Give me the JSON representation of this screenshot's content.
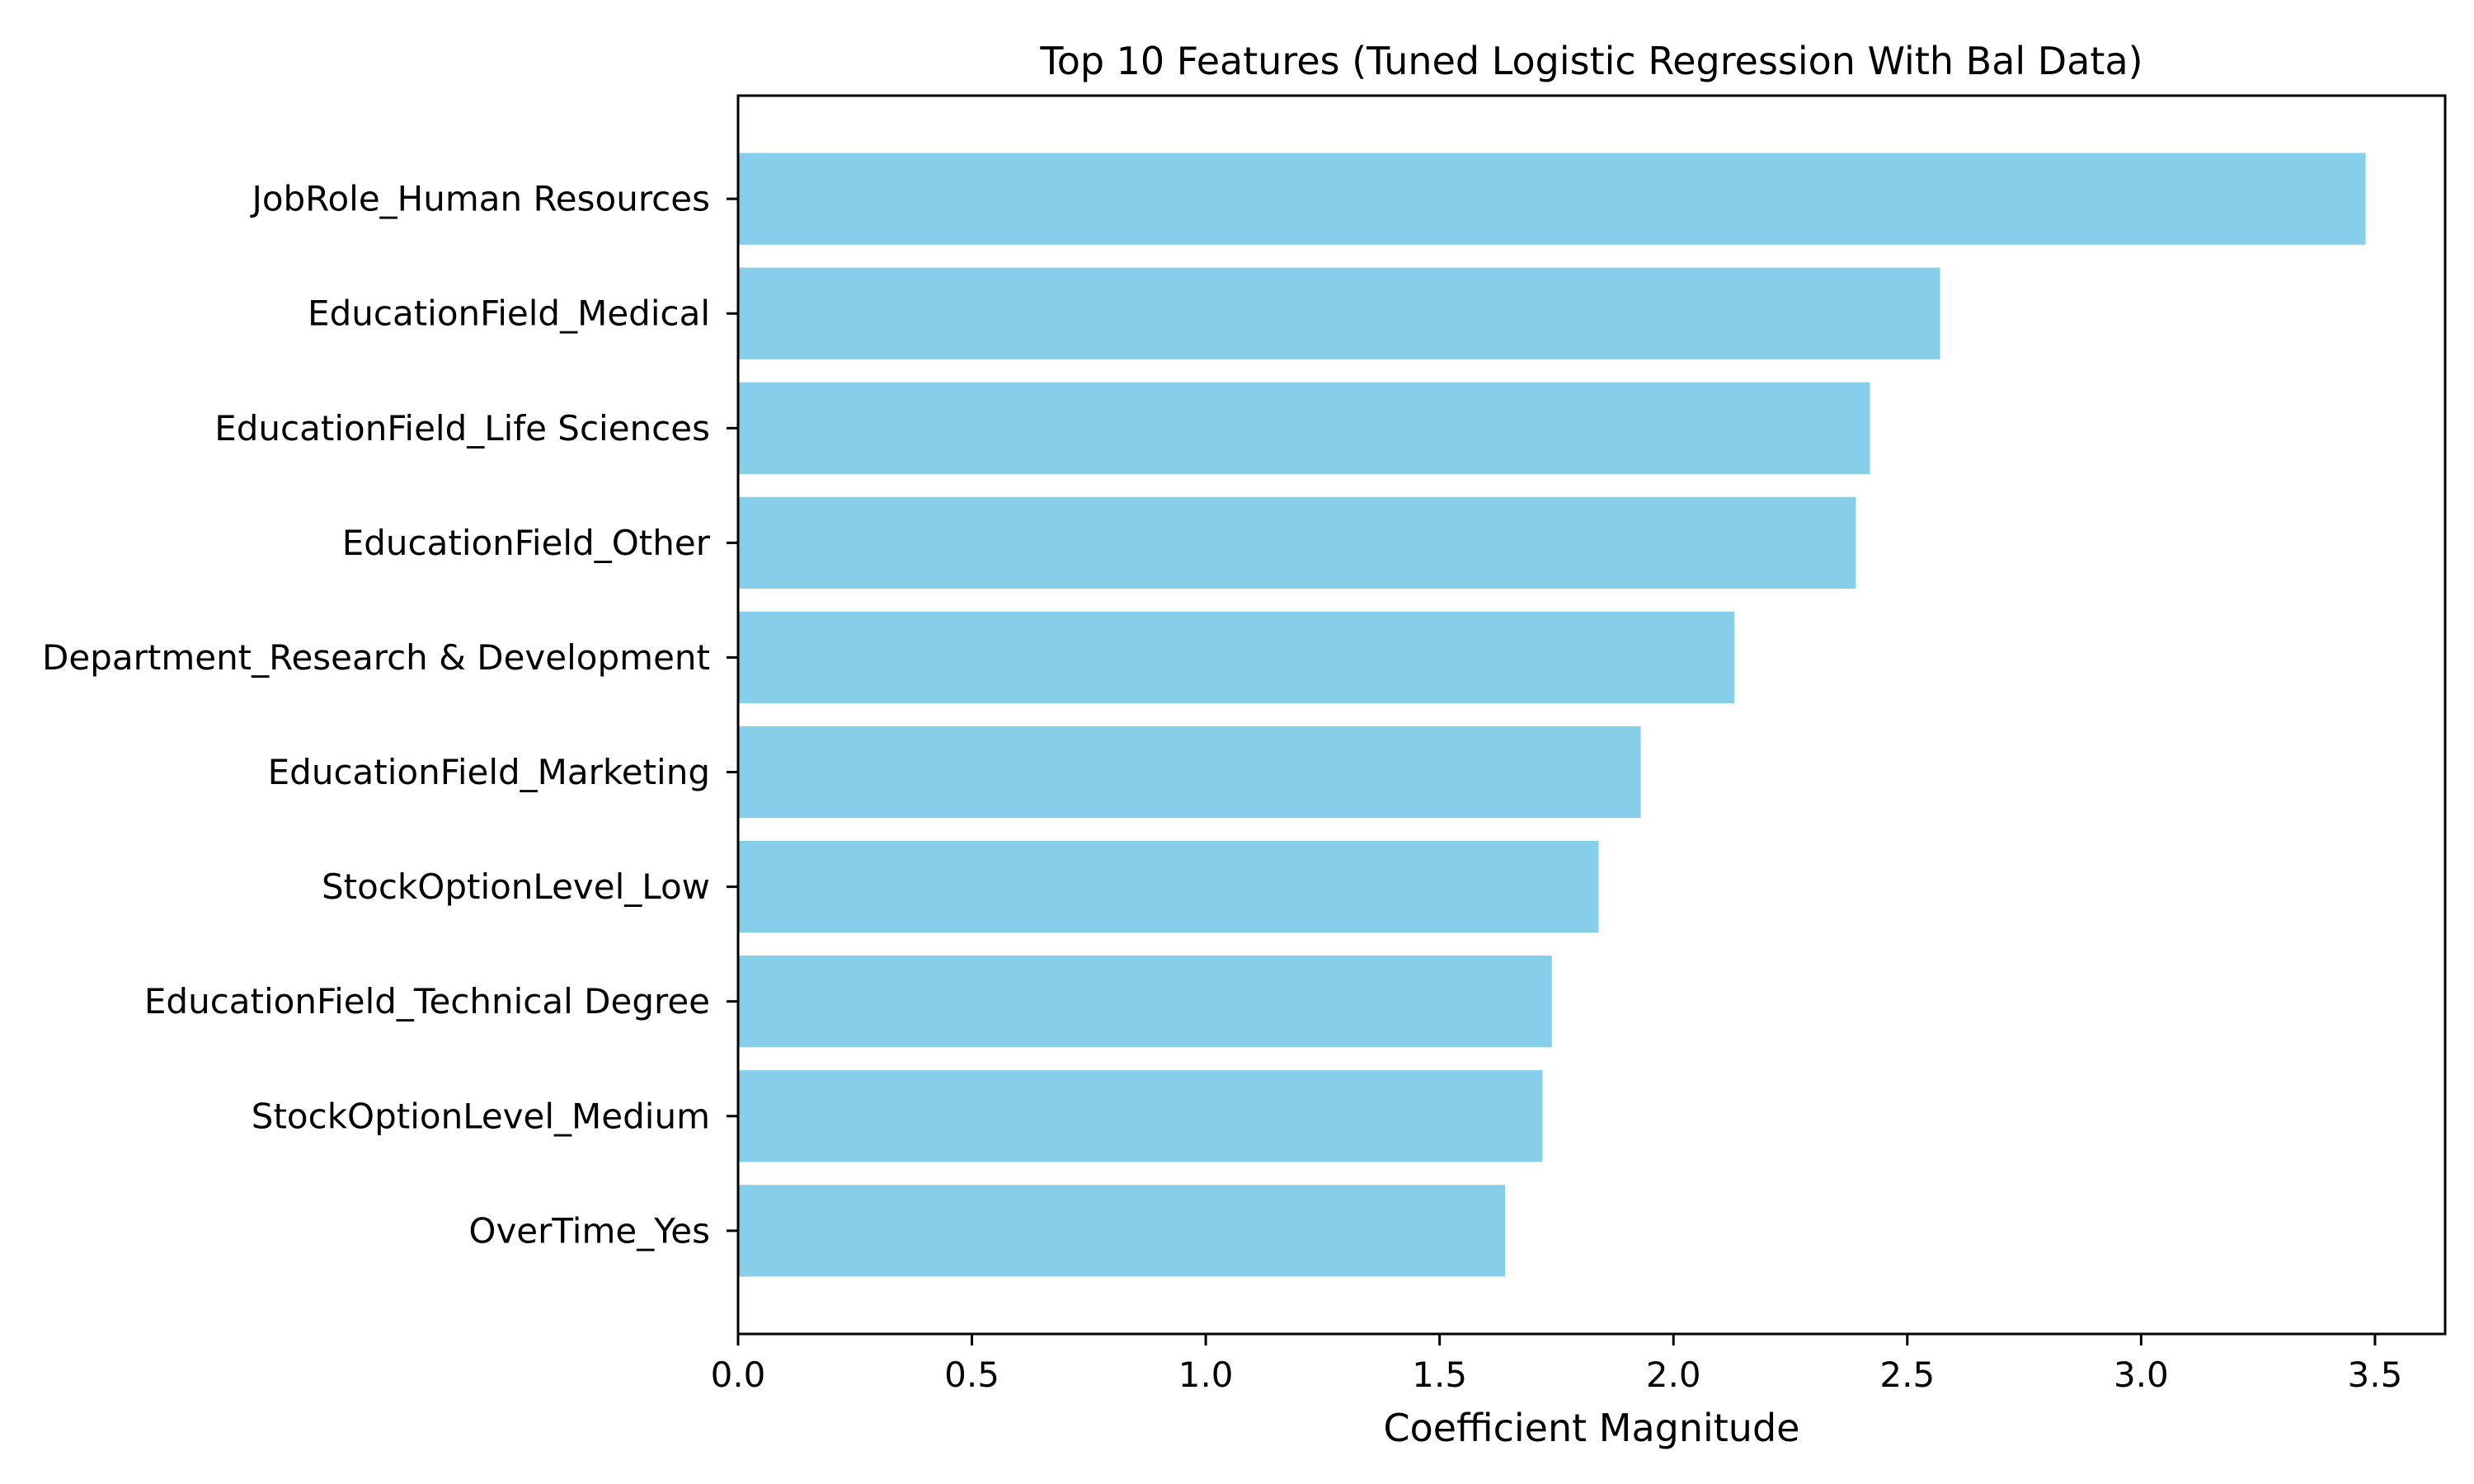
{
  "chart_data": {
    "type": "bar",
    "orientation": "horizontal",
    "title": "Top 10 Features (Tuned Logistic Regression With Bal Data)",
    "xlabel": "Coefficient Magnitude",
    "ylabel": "",
    "xlim": [
      0,
      3.65
    ],
    "xticks": [
      0.0,
      0.5,
      1.0,
      1.5,
      2.0,
      2.5,
      3.0,
      3.5
    ],
    "xtick_labels": [
      "0.0",
      "0.5",
      "1.0",
      "1.5",
      "2.0",
      "2.5",
      "3.0",
      "3.5"
    ],
    "categories": [
      "JobRole_Human Resources",
      "EducationField_Medical",
      "EducationField_Life Sciences",
      "EducationField_Other",
      "Department_Research & Development",
      "EducationField_Marketing",
      "StockOptionLevel_Low",
      "EducationField_Technical Degree",
      "StockOptionLevel_Medium",
      "OverTime_Yes"
    ],
    "values": [
      3.48,
      2.57,
      2.42,
      2.39,
      2.13,
      1.93,
      1.84,
      1.74,
      1.72,
      1.64
    ],
    "bar_color": "#87ceeb",
    "grid": false,
    "legend": "none"
  }
}
